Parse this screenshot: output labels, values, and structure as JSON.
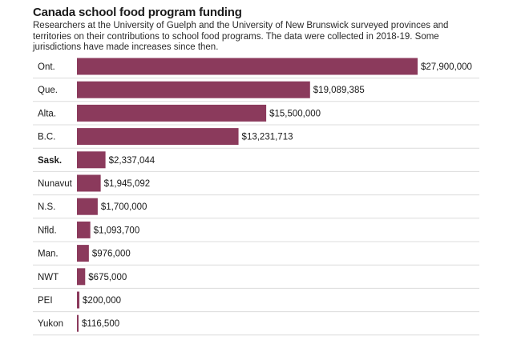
{
  "chart_data": {
    "type": "bar",
    "orientation": "horizontal",
    "title": "Canada school food program funding",
    "subtitle": "Researchers at the University of Guelph and the University of New Brunswick surveyed provinces and territories on their contributions to school food programs. The data were collected in 2018-19. Some jurisdictions have made increases since then.",
    "categories": [
      "Ont.",
      "Que.",
      "Alta.",
      "B.C.",
      "Sask.",
      "Nunavut",
      "N.S.",
      "Nfld.",
      "Man.",
      "NWT",
      "PEI",
      "Yukon"
    ],
    "values": [
      27900000,
      19089385,
      15500000,
      13231713,
      2337044,
      1945092,
      1700000,
      1093700,
      976000,
      675000,
      200000,
      116500
    ],
    "value_labels": [
      "$27,900,000",
      "$19,089,385",
      "$15,500,000",
      "$13,231,713",
      "$2,337,044",
      "$1,945,092",
      "$1,700,000",
      "$1,093,700",
      "$976,000",
      "$675,000",
      "$200,000",
      "$116,500"
    ],
    "highlighted_category": "Sask.",
    "bar_color": "#8b3a5c",
    "xlim": [
      0,
      27900000
    ],
    "grid": false
  }
}
